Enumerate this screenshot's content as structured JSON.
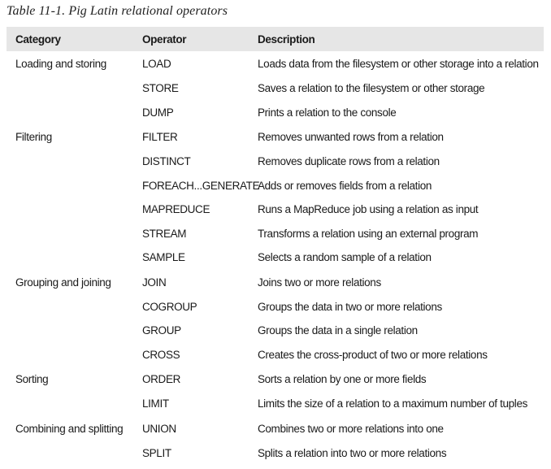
{
  "caption": "Table 11-1. Pig Latin relational operators",
  "headers": {
    "category": "Category",
    "operator": "Operator",
    "description": "Description"
  },
  "groups": [
    {
      "category": "Loading and storing",
      "rows": [
        {
          "operator": "LOAD",
          "description": "Loads data from the filesystem or other storage into a relation"
        },
        {
          "operator": "STORE",
          "description": "Saves a relation to the filesystem or other storage"
        },
        {
          "operator": "DUMP",
          "description": "Prints a relation to the console"
        }
      ]
    },
    {
      "category": "Filtering",
      "rows": [
        {
          "operator": "FILTER",
          "description": "Removes unwanted rows from a relation"
        },
        {
          "operator": "DISTINCT",
          "description": "Removes duplicate rows from a relation"
        },
        {
          "operator": "FOREACH...GENERATE",
          "description": "Adds or removes fields from a relation"
        },
        {
          "operator": "MAPREDUCE",
          "description": "Runs a MapReduce job using a relation as input"
        },
        {
          "operator": "STREAM",
          "description": "Transforms a relation using an external program"
        },
        {
          "operator": "SAMPLE",
          "description": "Selects a random sample of a relation"
        }
      ]
    },
    {
      "category": "Grouping and joining",
      "rows": [
        {
          "operator": "JOIN",
          "description": "Joins two or more relations"
        },
        {
          "operator": "COGROUP",
          "description": "Groups the data in two or more relations"
        },
        {
          "operator": "GROUP",
          "description": "Groups the data in a single relation"
        },
        {
          "operator": "CROSS",
          "description": "Creates the cross-product of two or more relations"
        }
      ]
    },
    {
      "category": "Sorting",
      "rows": [
        {
          "operator": "ORDER",
          "description": "Sorts a relation by one or more fields"
        },
        {
          "operator": "LIMIT",
          "description": "Limits the size of a relation to a maximum number of tuples"
        }
      ]
    },
    {
      "category": "Combining and splitting",
      "rows": [
        {
          "operator": "UNION",
          "description": "Combines two or more relations into one"
        },
        {
          "operator": "SPLIT",
          "description": "Splits a relation into two or more relations"
        }
      ]
    }
  ]
}
